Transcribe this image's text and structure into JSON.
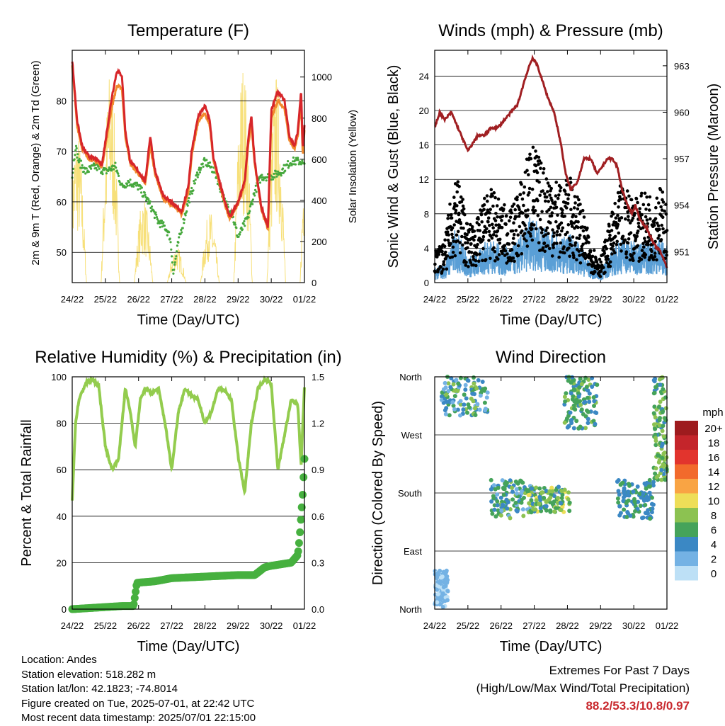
{
  "chart_data": [
    {
      "type": "line",
      "title": "Temperature (F)",
      "xlabel": "Time (Day/UTC)",
      "ylabel_left": "2m & 9m T (Red, Orange) & 2m Td (Green)",
      "ylabel_right": "Solar Insolation (Yellow)",
      "x_ticks": [
        "24/22",
        "25/22",
        "26/22",
        "27/22",
        "28/22",
        "29/22",
        "30/22",
        "01/22"
      ],
      "y_ticks_left": [
        "50",
        "60",
        "70",
        "80"
      ],
      "y_ticks_right": [
        "0",
        "200",
        "400",
        "600",
        "800",
        "1000"
      ],
      "ylim_left": [
        44,
        90
      ],
      "ylim_right": [
        0,
        1130
      ],
      "grid": "horizontal",
      "colors": {
        "t2m": "#d7262a",
        "t9m": "#f28a2e",
        "td": "#46a83d",
        "solar": "#f7e07a"
      },
      "series": [
        {
          "key": "t2m",
          "x": [
            0,
            0.05,
            0.15,
            0.3,
            0.5,
            0.7,
            0.9,
            1.2,
            1.35,
            1.5,
            1.6,
            1.75,
            2,
            2.2,
            2.35,
            2.5,
            2.75,
            3,
            3.3,
            3.5,
            3.6,
            3.8,
            4,
            4.15,
            4.25,
            4.4,
            4.6,
            4.75,
            5,
            5.2,
            5.3,
            5.4,
            5.5,
            5.7,
            5.9,
            6,
            6.2,
            6.4,
            6.55,
            6.7,
            6.8,
            6.9,
            6.95,
            7
          ],
          "values": [
            88,
            84,
            76,
            71,
            69,
            68.5,
            67.5,
            81,
            86,
            85,
            74,
            68,
            66,
            64,
            73,
            66,
            61,
            60,
            58,
            63,
            70,
            77,
            79,
            76,
            69,
            65,
            60,
            57,
            60,
            64,
            72,
            77,
            68,
            59,
            55,
            78,
            82,
            80,
            73,
            71,
            74,
            82,
            70,
            75
          ]
        },
        {
          "key": "t9m",
          "x": [
            0,
            0.05,
            0.15,
            0.3,
            0.5,
            0.7,
            0.9,
            1.2,
            1.35,
            1.5,
            1.6,
            1.75,
            2,
            2.2,
            2.35,
            2.5,
            2.75,
            3,
            3.3,
            3.5,
            3.6,
            3.8,
            4,
            4.15,
            4.25,
            4.4,
            4.6,
            4.75,
            5,
            5.2,
            5.3,
            5.4,
            5.5,
            5.7,
            5.9,
            6,
            6.2,
            6.4,
            6.55,
            6.7,
            6.8,
            6.9,
            6.95,
            7
          ],
          "values": [
            87,
            83,
            75,
            70.5,
            68.5,
            68,
            67,
            79,
            83,
            82.5,
            73,
            67.5,
            65.5,
            63.5,
            71,
            65.5,
            60.5,
            59.5,
            57.5,
            62,
            69,
            76,
            77.5,
            75,
            68.5,
            64.5,
            59.5,
            56.5,
            59.5,
            63.5,
            71,
            75.5,
            67.5,
            58.5,
            54.5,
            76.5,
            80,
            78.5,
            72,
            70.5,
            73,
            80,
            69,
            74
          ]
        },
        {
          "key": "td",
          "x": [
            0,
            0.1,
            0.2,
            0.4,
            0.7,
            1,
            1.3,
            1.5,
            1.7,
            2,
            2.3,
            2.6,
            2.8,
            2.95,
            3.05,
            3.2,
            3.5,
            3.8,
            4,
            4.3,
            4.6,
            4.8,
            5,
            5.3,
            5.5,
            5.7,
            6,
            6.3,
            6.6,
            6.9,
            7
          ],
          "values": [
            65,
            71,
            68,
            66,
            67,
            66,
            67,
            63,
            64,
            63,
            60,
            56,
            55,
            53,
            46,
            52,
            60,
            66,
            68,
            66,
            60,
            58,
            53,
            57,
            62,
            65,
            65,
            66,
            68,
            68,
            67
          ]
        },
        {
          "key": "solar",
          "daily_peaks": [
            750,
            1050,
            420,
            180,
            350,
            1080,
            1020,
            1100
          ]
        }
      ]
    },
    {
      "type": "line",
      "title": "Winds (mph) & Pressure (mb)",
      "xlabel": "Time (Day/UTC)",
      "ylabel_left": "Sonic Wind & Gust (Blue, Black)",
      "ylabel_right": "Station Pressure (Maroon)",
      "x_ticks": [
        "24/22",
        "25/22",
        "26/22",
        "27/22",
        "28/22",
        "29/22",
        "30/22",
        "01/22"
      ],
      "y_ticks_left": [
        "0",
        "4",
        "8",
        "12",
        "16",
        "20",
        "24"
      ],
      "y_ticks_right": [
        "951",
        "954",
        "957",
        "960",
        "963"
      ],
      "ylim_left": [
        0,
        27
      ],
      "ylim_right": [
        949.0,
        964.0
      ],
      "grid": "horizontal",
      "colors": {
        "wind": "#5a9fd6",
        "gust": "#000000",
        "pressure": "#a01f22"
      },
      "series": [
        {
          "key": "pressure",
          "x": [
            0,
            0.15,
            0.3,
            0.5,
            0.7,
            0.9,
            1,
            1.15,
            1.3,
            1.5,
            1.7,
            1.9,
            2.1,
            2.3,
            2.5,
            2.7,
            2.85,
            2.95,
            3.1,
            3.25,
            3.4,
            3.6,
            3.8,
            3.95,
            4.1,
            4.3,
            4.5,
            4.7,
            4.9,
            5.05,
            5.2,
            5.35,
            5.5,
            5.65,
            5.8,
            5.95,
            6.05,
            6.2,
            6.4,
            6.6,
            6.8,
            7
          ],
          "values": [
            959,
            960,
            959.5,
            960,
            959,
            958,
            957.5,
            958,
            958.5,
            958.5,
            959,
            959,
            959.5,
            960,
            960.5,
            962,
            963,
            963.5,
            963,
            962,
            961,
            960,
            958,
            956,
            955,
            955.5,
            957,
            957,
            956,
            956.5,
            957,
            957,
            956.5,
            955,
            954,
            953.5,
            954,
            953,
            952.5,
            951.5,
            951,
            950
          ]
        },
        {
          "key": "wind",
          "typical_range": [
            1,
            8
          ]
        },
        {
          "key": "gust",
          "typical_range": [
            2,
            18
          ]
        }
      ]
    },
    {
      "type": "line",
      "title": "Relative Humidity (%) & Precipitation (in)",
      "xlabel": "Time (Day/UTC)",
      "ylabel_left": "Percent & Total Rainfall",
      "y_ticks_left": [
        "0",
        "20",
        "40",
        "60",
        "80",
        "100"
      ],
      "y_ticks_right": [
        "0.0",
        "0.3",
        "0.6",
        "0.9",
        "1.2",
        "1.5"
      ],
      "x_ticks": [
        "24/22",
        "25/22",
        "26/22",
        "27/22",
        "28/22",
        "29/22",
        "30/22",
        "01/22"
      ],
      "ylim_left": [
        0,
        100
      ],
      "ylim_right": [
        0,
        1.5
      ],
      "grid": "horizontal",
      "colors": {
        "rh": "#93cc4e",
        "precip": "#46b03f"
      },
      "series": [
        {
          "key": "rh",
          "x": [
            0,
            0.1,
            0.2,
            0.4,
            0.6,
            0.8,
            1,
            1.2,
            1.4,
            1.6,
            1.75,
            1.9,
            2.05,
            2.2,
            2.4,
            2.6,
            2.8,
            3,
            3.2,
            3.4,
            3.6,
            3.8,
            4,
            4.2,
            4.4,
            4.6,
            4.8,
            5,
            5.2,
            5.4,
            5.6,
            5.8,
            6,
            6.2,
            6.4,
            6.6,
            6.8,
            6.9,
            7
          ],
          "values": [
            47,
            80,
            90,
            97,
            99,
            96,
            70,
            60,
            65,
            95,
            85,
            70,
            90,
            95,
            93,
            95,
            80,
            60,
            85,
            95,
            92,
            90,
            80,
            85,
            95,
            94,
            90,
            66,
            50,
            80,
            95,
            99,
            97,
            60,
            75,
            90,
            88,
            62,
            96
          ]
        },
        {
          "key": "precip",
          "x": [
            0,
            1.5,
            1.85,
            1.95,
            2.5,
            3,
            4,
            5,
            5.5,
            5.8,
            6,
            6.3,
            6.6,
            6.8,
            6.85,
            6.95,
            7
          ],
          "values": [
            0,
            0.02,
            0.02,
            0.17,
            0.18,
            0.2,
            0.21,
            0.22,
            0.22,
            0.27,
            0.28,
            0.29,
            0.3,
            0.35,
            0.45,
            0.75,
            0.97
          ]
        }
      ]
    },
    {
      "type": "scatter",
      "title": "Wind Direction",
      "xlabel": "Time (Day/UTC)",
      "ylabel": "Direction (Colored By Speed)",
      "x_ticks": [
        "24/22",
        "25/22",
        "26/22",
        "27/22",
        "28/22",
        "29/22",
        "30/22",
        "01/22"
      ],
      "y_ticks": [
        "North",
        "East",
        "South",
        "West",
        "North"
      ],
      "ylim": [
        0,
        360
      ],
      "grid": "horizontal",
      "colorbar_label": "mph",
      "colorbar_ticks": [
        "20+",
        "18",
        "16",
        "14",
        "12",
        "10",
        "8",
        "6",
        "4",
        "2",
        "0"
      ],
      "colorbar_colors": [
        "#9e1b1e",
        "#c4252b",
        "#e2342d",
        "#f26a2c",
        "#f9a444",
        "#eede58",
        "#8cc251",
        "#45a35a",
        "#3b88c4",
        "#74b2e4",
        "#bde0f6"
      ],
      "clusters": [
        {
          "x": [
            0,
            0.4
          ],
          "dir": [
            0,
            60
          ],
          "speed": [
            0,
            3
          ]
        },
        {
          "x": [
            0.2,
            1.6
          ],
          "dir": [
            300,
            360
          ],
          "speed": [
            2,
            8
          ]
        },
        {
          "x": [
            1.7,
            3
          ],
          "dir": [
            140,
            200
          ],
          "speed": [
            2,
            8
          ]
        },
        {
          "x": [
            2.8,
            4.1
          ],
          "dir": [
            150,
            190
          ],
          "speed": [
            4,
            10
          ]
        },
        {
          "x": [
            3.9,
            4.9
          ],
          "dir": [
            280,
            360
          ],
          "speed": [
            3,
            8
          ]
        },
        {
          "x": [
            5.5,
            6.6
          ],
          "dir": [
            140,
            200
          ],
          "speed": [
            3,
            7
          ]
        },
        {
          "x": [
            6.6,
            7
          ],
          "dir": [
            200,
            360
          ],
          "speed": [
            4,
            9
          ]
        }
      ]
    }
  ],
  "info": {
    "location": "Location: Andes",
    "elevation": "Station elevation: 518.282 m",
    "latlon": "Station lat/lon: 42.1823; -74.8014",
    "created": "Figure created on Tue, 2025-07-01, at 22:42 UTC",
    "timestamp": "Most recent data timestamp: 2025/07/01 22:15:00"
  },
  "extremes": {
    "title": "Extremes For Past 7 Days",
    "subtitle": "(High/Low/Max Wind/Total Precipitation)",
    "values": "88.2/53.3/10.8/0.97"
  }
}
